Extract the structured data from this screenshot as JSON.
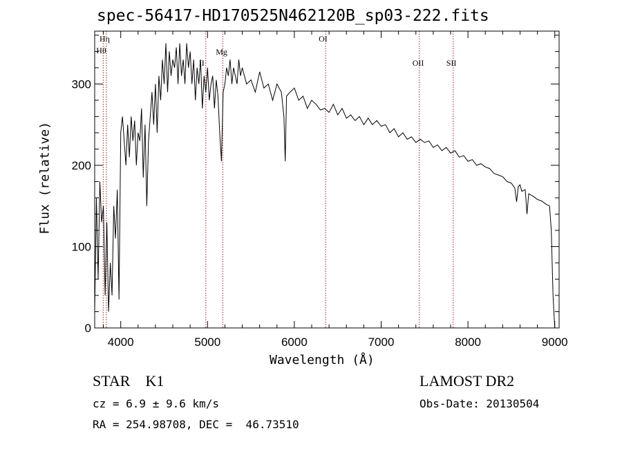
{
  "chart_data": {
    "type": "line",
    "title": "spec-56417-HD170525N462120B_sp03-222.fits",
    "xlabel": "Wavelength (Å)",
    "ylabel": "Flux (relative)",
    "xlim": [
      3700,
      9050
    ],
    "ylim": [
      0,
      365
    ],
    "xticks": [
      4000,
      5000,
      6000,
      7000,
      8000,
      9000
    ],
    "yticks": [
      0,
      100,
      200,
      300
    ],
    "grid": false,
    "series": [
      {
        "x": [
          3700,
          3720,
          3740,
          3760,
          3780,
          3800,
          3820,
          3840,
          3860,
          3880,
          3900,
          3920,
          3940,
          3960,
          3980,
          4000,
          4020,
          4040,
          4060,
          4080,
          4100,
          4120,
          4140,
          4160,
          4180,
          4200,
          4220,
          4240,
          4260,
          4280,
          4300,
          4320,
          4340,
          4360,
          4380,
          4400,
          4420,
          4440,
          4460,
          4480,
          4500,
          4520,
          4540,
          4560,
          4580,
          4600,
          4620,
          4640,
          4660,
          4680,
          4700,
          4720,
          4740,
          4760,
          4780,
          4800,
          4820,
          4840,
          4860,
          4880,
          4900,
          4920,
          4940,
          4960,
          4980,
          5000,
          5020,
          5040,
          5060,
          5080,
          5100,
          5120,
          5140,
          5160,
          5180,
          5200,
          5220,
          5240,
          5260,
          5280,
          5300,
          5320,
          5340,
          5360,
          5380,
          5400,
          5450,
          5500,
          5550,
          5600,
          5650,
          5700,
          5750,
          5800,
          5850,
          5880,
          5895,
          5910,
          5950,
          6000,
          6050,
          6100,
          6150,
          6200,
          6250,
          6300,
          6350,
          6400,
          6450,
          6500,
          6550,
          6600,
          6650,
          6700,
          6750,
          6800,
          6850,
          6900,
          6950,
          7000,
          7050,
          7100,
          7150,
          7200,
          7250,
          7300,
          7350,
          7400,
          7450,
          7500,
          7550,
          7600,
          7650,
          7700,
          7750,
          7800,
          7850,
          7900,
          7950,
          8000,
          8050,
          8100,
          8150,
          8200,
          8250,
          8300,
          8350,
          8400,
          8450,
          8500,
          8540,
          8560,
          8580,
          8600,
          8620,
          8660,
          8680,
          8700,
          8750,
          8800,
          8850,
          8900,
          8940,
          8960,
          8980,
          9000
        ],
        "y": [
          20,
          160,
          60,
          180,
          130,
          150,
          40,
          130,
          20,
          80,
          40,
          150,
          110,
          170,
          35,
          240,
          260,
          230,
          200,
          250,
          210,
          260,
          230,
          255,
          200,
          240,
          230,
          270,
          185,
          250,
          150,
          230,
          260,
          290,
          250,
          300,
          240,
          310,
          280,
          330,
          300,
          350,
          290,
          340,
          310,
          330,
          320,
          345,
          300,
          350,
          310,
          330,
          300,
          350,
          320,
          340,
          300,
          330,
          280,
          320,
          300,
          330,
          270,
          310,
          290,
          320,
          280,
          300,
          310,
          270,
          305,
          285,
          240,
          205,
          290,
          300,
          320,
          310,
          330,
          300,
          320,
          310,
          300,
          330,
          310,
          320,
          300,
          305,
          290,
          315,
          295,
          300,
          280,
          300,
          290,
          260,
          205,
          285,
          290,
          295,
          280,
          285,
          270,
          280,
          275,
          268,
          270,
          265,
          275,
          262,
          270,
          258,
          262,
          255,
          260,
          250,
          258,
          250,
          255,
          248,
          250,
          240,
          245,
          235,
          240,
          232,
          235,
          228,
          232,
          228,
          230,
          222,
          225,
          218,
          222,
          215,
          218,
          210,
          212,
          205,
          207,
          200,
          202,
          198,
          196,
          190,
          188,
          186,
          180,
          178,
          172,
          155,
          174,
          176,
          168,
          170,
          140,
          165,
          162,
          158,
          156,
          152,
          150,
          120,
          40,
          0
        ]
      }
    ],
    "line_markers": [
      {
        "label": "Hη",
        "x": 3835
      },
      {
        "label": "Hθ",
        "x": 3798
      },
      {
        "label": "II",
        "x": 4980
      },
      {
        "label": "Mg",
        "x": 5175
      },
      {
        "label": "OI",
        "x": 6360
      },
      {
        "label": "OII",
        "x": 7440
      },
      {
        "label": "SII",
        "x": 7830
      }
    ],
    "annotations": [
      "STAR    K1",
      "cz = 6.9 ± 9.6 km/s",
      "RA = 254.98708, DEC =  46.73510",
      "LAMOST DR2",
      "Obs-Date: 20130504"
    ]
  },
  "info": {
    "class": "STAR    K1",
    "cz": "cz = 6.9 ± 9.6 km/s",
    "coords": "RA = 254.98708, DEC =  46.73510",
    "survey": "LAMOST DR2",
    "obs_date": "Obs-Date: 20130504"
  },
  "colors": {
    "line": "#000000",
    "marker": "#9c1b1b",
    "axis": "#000000"
  }
}
